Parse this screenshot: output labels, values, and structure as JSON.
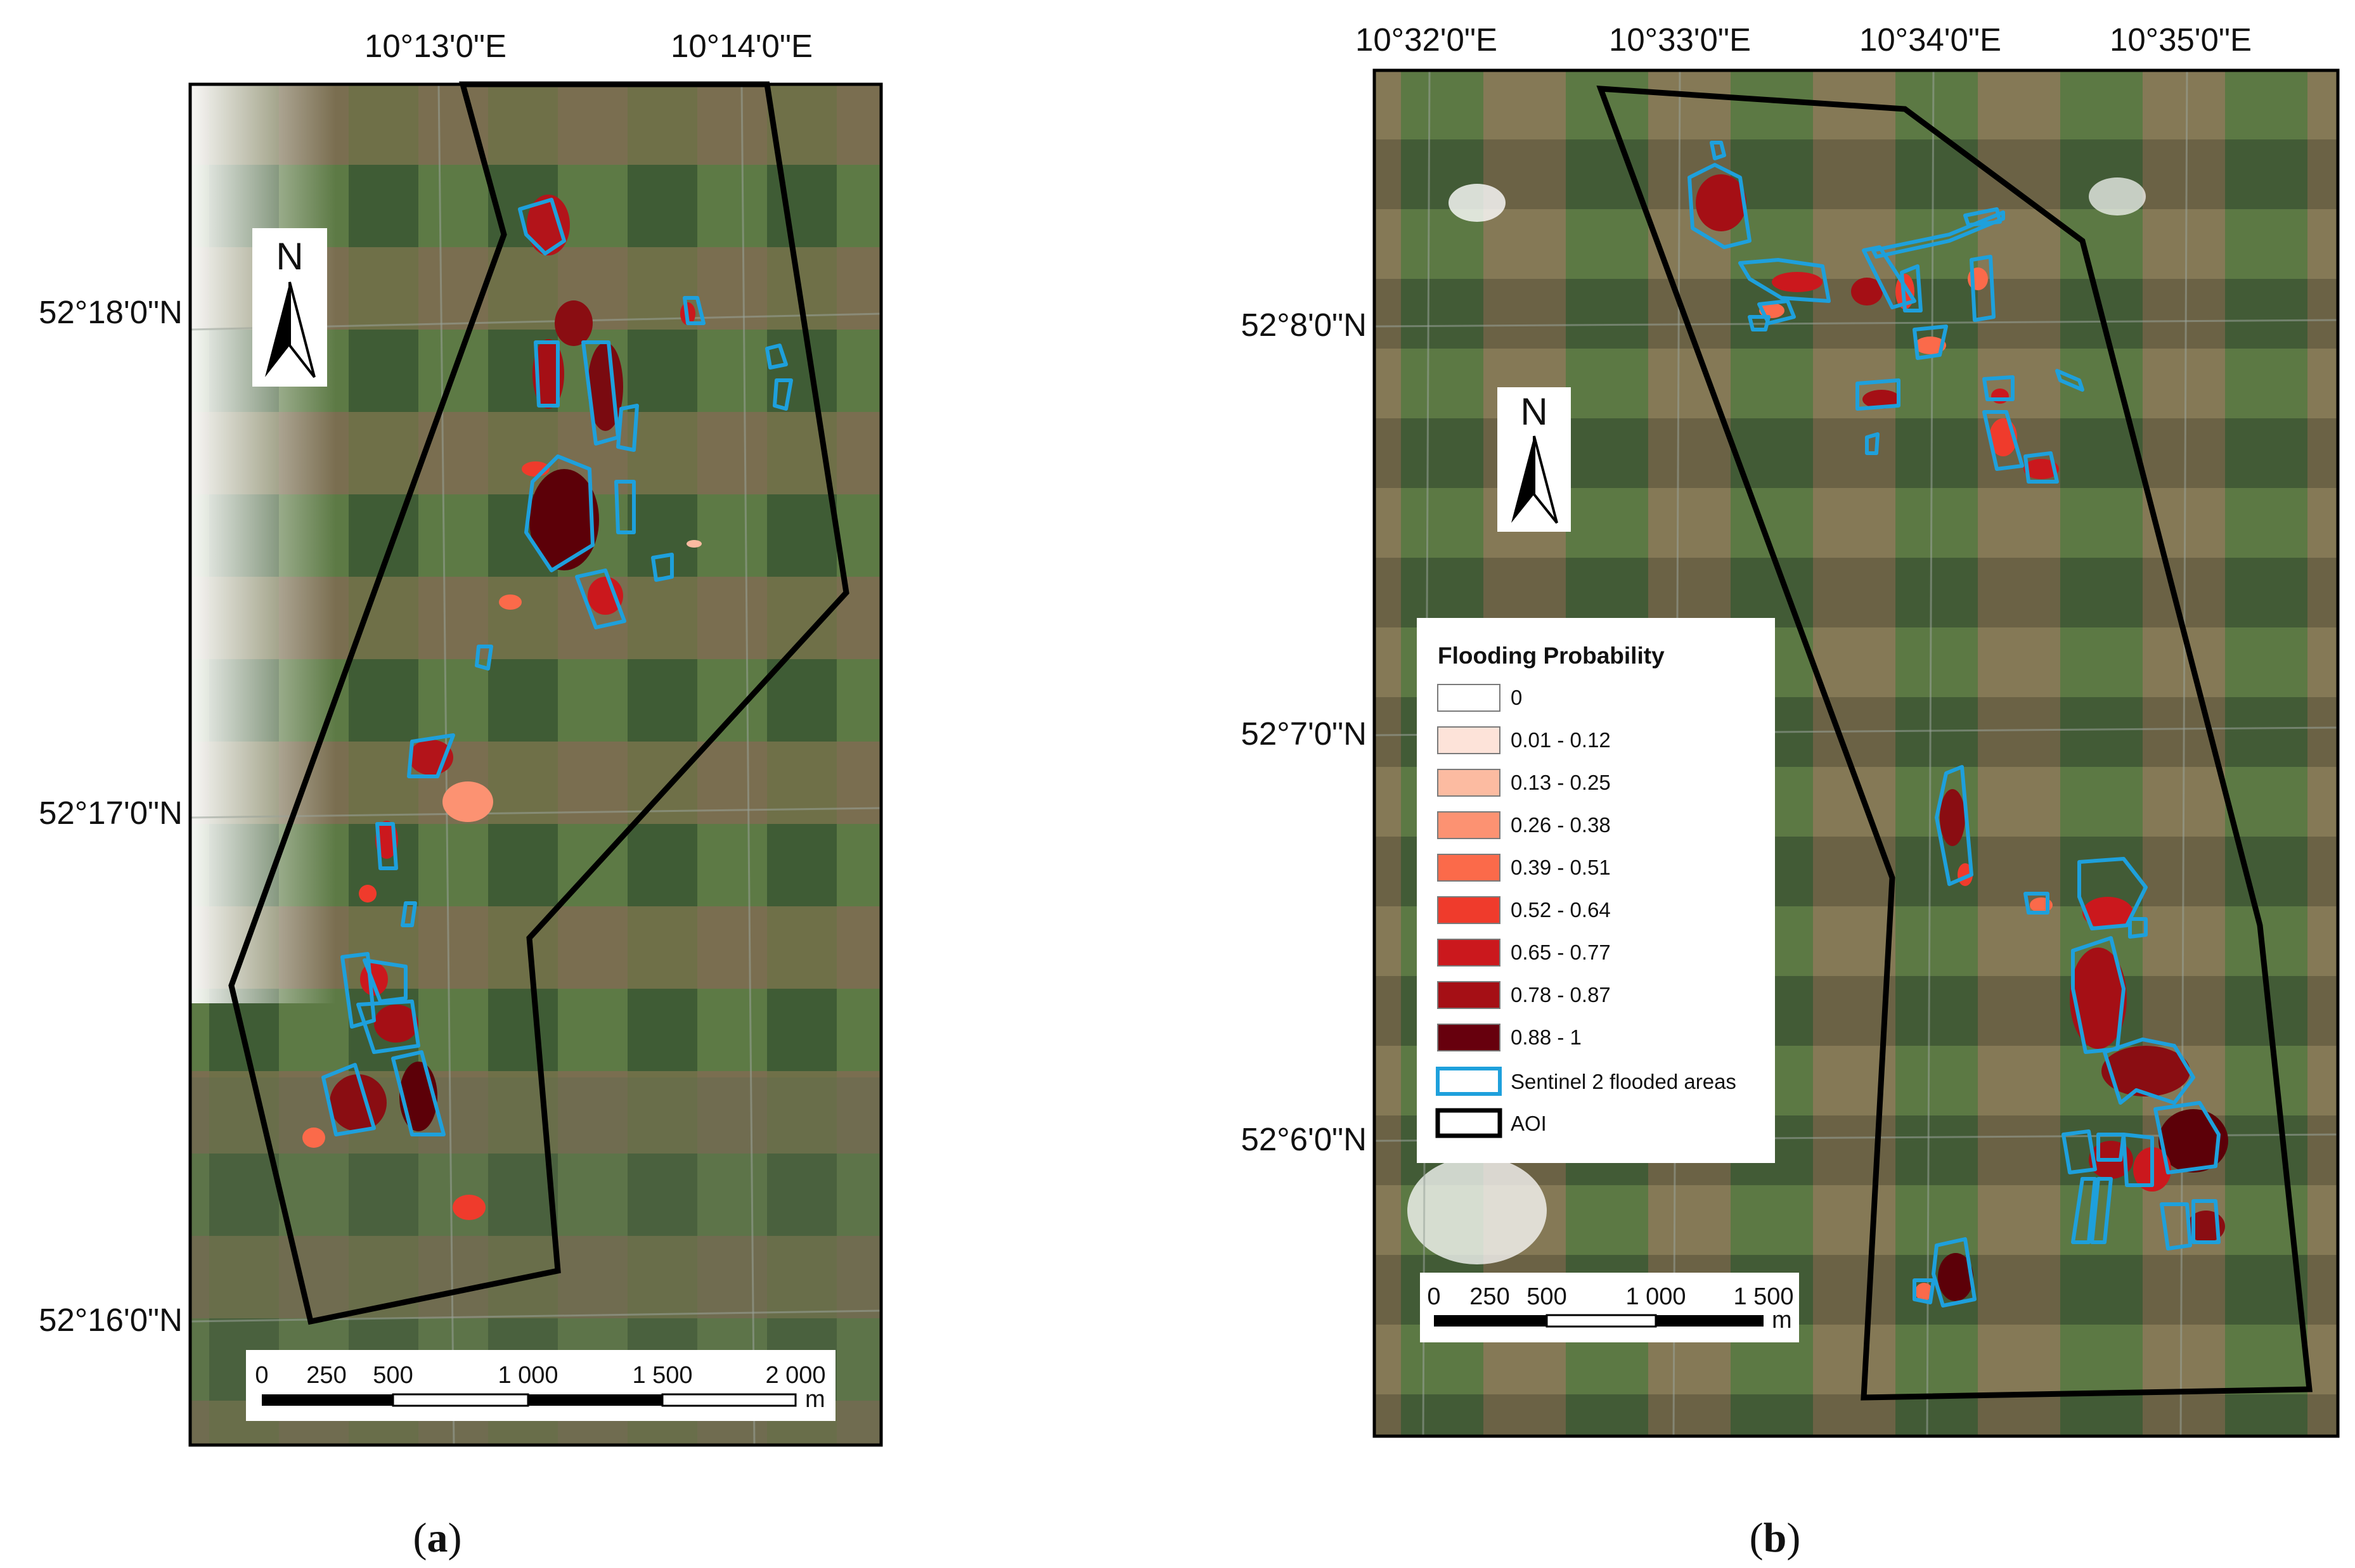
{
  "figure": {
    "panel_a": {
      "label_open": "(",
      "label_letter": "a",
      "label_close": ")",
      "lon_ticks": [
        "10°13'0\"E",
        "10°14'0\"E"
      ],
      "lat_ticks": [
        "52°18'0\"N",
        "52°17'0\"N",
        "52°16'0\"N"
      ],
      "north_label": "N",
      "scale_ticks": [
        "0",
        "250",
        "500",
        "1 000",
        "1 500",
        "2 000"
      ],
      "scale_unit": "m"
    },
    "panel_b": {
      "label_open": "(",
      "label_letter": "b",
      "label_close": ")",
      "lon_ticks": [
        "10°32'0\"E",
        "10°33'0\"E",
        "10°34'0\"E",
        "10°35'0\"E"
      ],
      "lat_ticks": [
        "52°8'0\"N",
        "52°7'0\"N",
        "52°6'0\"N"
      ],
      "north_label": "N",
      "scale_ticks": [
        "0",
        "250",
        "500",
        "1 000",
        "1 500"
      ],
      "scale_unit": "m"
    },
    "legend": {
      "title": "Flooding Probability",
      "classes": [
        {
          "label": "0",
          "color": "#ffffff"
        },
        {
          "label": "0.01 - 0.12",
          "color": "#fde3d9"
        },
        {
          "label": "0.13 - 0.25",
          "color": "#fcbba1"
        },
        {
          "label": "0.26 - 0.38",
          "color": "#fc9272"
        },
        {
          "label": "0.39 - 0.51",
          "color": "#fb6a4a"
        },
        {
          "label": "0.52 - 0.64",
          "color": "#ef3b2c"
        },
        {
          "label": "0.65 - 0.77",
          "color": "#cb181d"
        },
        {
          "label": "0.78 - 0.87",
          "color": "#a50f15"
        },
        {
          "label": "0.88 - 1",
          "color": "#67000d"
        }
      ],
      "sentinel_label": "Sentinel 2 flooded areas",
      "sentinel_color": "#1ea0dc",
      "aoi_label": "AOI",
      "aoi_color": "#000000"
    }
  }
}
